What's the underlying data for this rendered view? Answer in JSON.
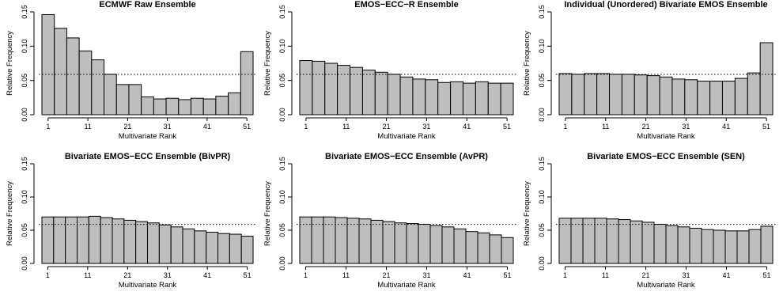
{
  "chart_data": [
    {
      "type": "bar",
      "title": "ECMWF Raw Ensemble",
      "xlabel": "Multivariate Rank",
      "ylabel": "Relative Frequency",
      "x_ticks": [
        "1",
        "11",
        "21",
        "31",
        "41",
        "51"
      ],
      "y_ticks": [
        "0.00",
        "0.05",
        "0.10",
        "0.15"
      ],
      "ylim": [
        0,
        0.15
      ],
      "reference_line": 0.0588,
      "values": [
        0.146,
        0.126,
        0.112,
        0.093,
        0.08,
        0.059,
        0.044,
        0.044,
        0.026,
        0.023,
        0.024,
        0.022,
        0.024,
        0.023,
        0.027,
        0.032,
        0.092
      ],
      "bar_color": "#bebebe"
    },
    {
      "type": "bar",
      "title": "EMOS−ECC−R Ensemble",
      "xlabel": "Multivariate Rank",
      "ylabel": "Relative Frequency",
      "x_ticks": [
        "1",
        "11",
        "21",
        "31",
        "41",
        "51"
      ],
      "y_ticks": [
        "0.00",
        "0.05",
        "0.10",
        "0.15"
      ],
      "ylim": [
        0,
        0.15
      ],
      "reference_line": 0.0588,
      "values": [
        0.079,
        0.078,
        0.075,
        0.072,
        0.069,
        0.065,
        0.062,
        0.059,
        0.055,
        0.052,
        0.051,
        0.047,
        0.048,
        0.046,
        0.048,
        0.046,
        0.046
      ],
      "bar_color": "#bebebe"
    },
    {
      "type": "bar",
      "title": "Individual (Unordered) Bivariate EMOS Ensemble",
      "xlabel": "Multivariate Rank",
      "ylabel": "Relative Frequency",
      "x_ticks": [
        "1",
        "11",
        "21",
        "31",
        "41",
        "51"
      ],
      "y_ticks": [
        "0.00",
        "0.05",
        "0.10",
        "0.15"
      ],
      "ylim": [
        0,
        0.15
      ],
      "reference_line": 0.0588,
      "values": [
        0.06,
        0.059,
        0.06,
        0.06,
        0.059,
        0.059,
        0.058,
        0.057,
        0.055,
        0.052,
        0.051,
        0.049,
        0.049,
        0.049,
        0.053,
        0.061,
        0.105
      ],
      "bar_color": "#bebebe"
    },
    {
      "type": "bar",
      "title": "Bivariate EMOS−ECC Ensemble (BivPR)",
      "xlabel": "Multivariate Rank",
      "ylabel": "Relative Frequency",
      "x_ticks": [
        "1",
        "11",
        "21",
        "31",
        "41",
        "51"
      ],
      "y_ticks": [
        "0.00",
        "0.05",
        "0.10",
        "0.15"
      ],
      "ylim": [
        0,
        0.15
      ],
      "reference_line": 0.0588,
      "values": [
        0.07,
        0.07,
        0.07,
        0.07,
        0.071,
        0.069,
        0.067,
        0.065,
        0.063,
        0.061,
        0.058,
        0.055,
        0.052,
        0.049,
        0.047,
        0.045,
        0.044,
        0.041
      ],
      "bar_color": "#bebebe"
    },
    {
      "type": "bar",
      "title": "Bivariate EMOS−ECC Ensemble (AvPR)",
      "xlabel": "Multivariate Rank",
      "ylabel": "Relative Frequency",
      "x_ticks": [
        "1",
        "11",
        "21",
        "31",
        "41",
        "51"
      ],
      "y_ticks": [
        "0.00",
        "0.05",
        "0.10",
        "0.15"
      ],
      "ylim": [
        0,
        0.15
      ],
      "reference_line": 0.0588,
      "values": [
        0.07,
        0.07,
        0.07,
        0.069,
        0.068,
        0.067,
        0.065,
        0.063,
        0.061,
        0.06,
        0.059,
        0.057,
        0.055,
        0.052,
        0.048,
        0.046,
        0.043,
        0.039
      ],
      "bar_color": "#bebebe"
    },
    {
      "type": "bar",
      "title": "Bivariate EMOS−ECC Ensemble (SEN)",
      "xlabel": "Multivariate Rank",
      "ylabel": "Relative Frequency",
      "x_ticks": [
        "1",
        "11",
        "21",
        "31",
        "41",
        "51"
      ],
      "y_ticks": [
        "0.00",
        "0.05",
        "0.10",
        "0.15"
      ],
      "ylim": [
        0,
        0.15
      ],
      "reference_line": 0.0588,
      "values": [
        0.068,
        0.068,
        0.068,
        0.068,
        0.067,
        0.066,
        0.064,
        0.062,
        0.059,
        0.057,
        0.055,
        0.053,
        0.051,
        0.05,
        0.049,
        0.049,
        0.051,
        0.056
      ],
      "bar_color": "#bebebe"
    }
  ]
}
